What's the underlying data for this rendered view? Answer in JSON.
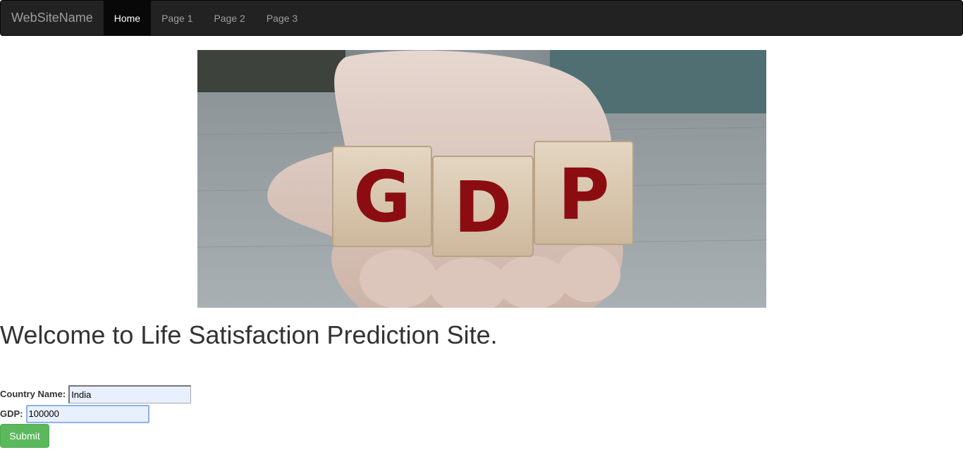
{
  "navbar": {
    "brand": "WebSiteName",
    "items": [
      {
        "label": "Home",
        "active": true
      },
      {
        "label": "Page 1",
        "active": false
      },
      {
        "label": "Page 2",
        "active": false
      },
      {
        "label": "Page 3",
        "active": false
      }
    ]
  },
  "hero": {
    "block_letters": [
      "G",
      "D",
      "P"
    ]
  },
  "main": {
    "heading": "Welcome to Life Satisfaction Prediction Site."
  },
  "form": {
    "country_label": "Country Name:",
    "country_value": "India",
    "gdp_label": "GDP:",
    "gdp_value": "100000",
    "submit_label": "Submit"
  },
  "colors": {
    "navbar_bg": "#222222",
    "active_tab_bg": "#080808",
    "submit_bg": "#5cb85c",
    "letter_red": "#8b0d12"
  }
}
